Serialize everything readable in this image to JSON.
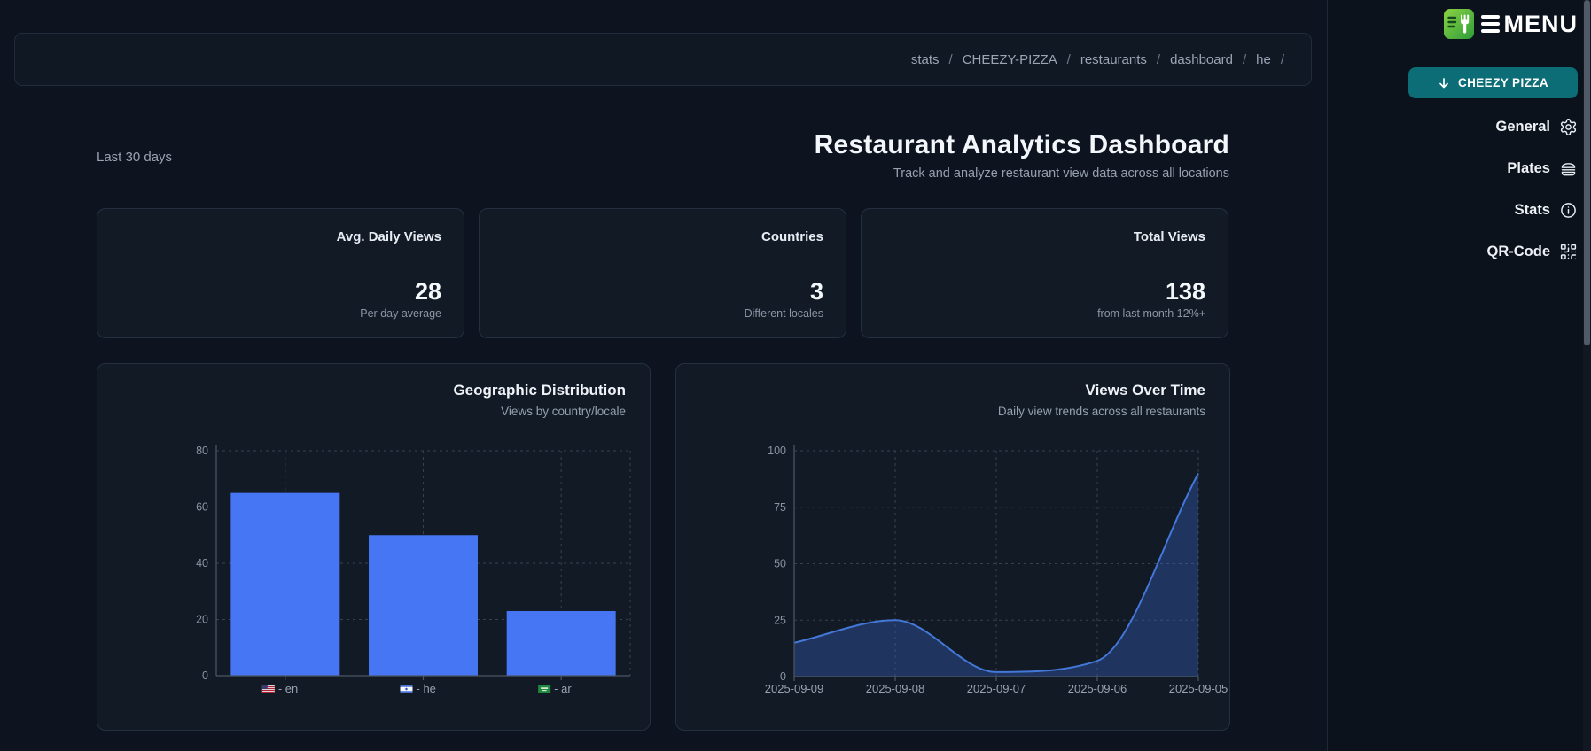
{
  "sidebar": {
    "logo_text": "MENU",
    "logo_icon": "fork-menu-icon",
    "restaurant_button": "CHEEZY PIZZA",
    "restaurant_button_icon": "arrow-down-icon",
    "button_color": "#0d6d77",
    "nav": [
      {
        "label": "General",
        "icon": "gear-icon"
      },
      {
        "label": "Plates",
        "icon": "burger-icon"
      },
      {
        "label": "Stats",
        "icon": "info-icon"
      },
      {
        "label": "QR-Code",
        "icon": "qr-code-icon"
      }
    ]
  },
  "breadcrumb": {
    "items": [
      "stats",
      "CHEEZY-PIZZA",
      "restaurants",
      "dashboard",
      "he"
    ],
    "separator": "/",
    "trailing_separator": true
  },
  "header": {
    "range_label": "Last 30 days",
    "title": "Restaurant Analytics Dashboard",
    "subtitle": "Track and analyze restaurant view data across all locations"
  },
  "stat_cards": [
    {
      "label": "Avg. Daily Views",
      "value": "28",
      "caption": "Per day average"
    },
    {
      "label": "Countries",
      "value": "3",
      "caption": "Different locales"
    },
    {
      "label": "Total Views",
      "value": "138",
      "caption": "from last month 12%+"
    }
  ],
  "chart_data": [
    {
      "type": "bar",
      "title": "Geographic Distribution",
      "subtitle": "Views by country/locale",
      "categories": [
        "- en",
        "- he",
        "- ar"
      ],
      "flags": [
        "us",
        "il",
        "sa"
      ],
      "values": [
        65,
        50,
        23
      ],
      "xlabel": "",
      "ylabel": "",
      "ylim": [
        0,
        80
      ],
      "yticks": [
        0,
        20,
        40,
        60,
        80
      ],
      "bar_color": "#4676f4",
      "grid": true,
      "legend": false
    },
    {
      "type": "area",
      "title": "Views Over Time",
      "subtitle": "Daily view trends across all restaurants",
      "x": [
        "2025-09-09",
        "2025-09-08",
        "2025-09-07",
        "2025-09-06",
        "2025-09-05"
      ],
      "values": [
        15,
        25,
        2,
        7,
        90
      ],
      "xlabel": "",
      "ylabel": "",
      "ylim": [
        0,
        100
      ],
      "yticks": [
        0,
        25,
        50,
        75,
        100
      ],
      "line_color": "#4377d8",
      "fill_color": "rgba(58,105,210,0.33)",
      "grid": true,
      "legend": false
    }
  ],
  "colors": {
    "page_bg": "#0d141f",
    "card_bg": "#121a26",
    "card_border": "#243040",
    "accent_blue": "#4676f4",
    "teal_button": "#0d6d77",
    "logo_green": "#5cbf3e"
  }
}
